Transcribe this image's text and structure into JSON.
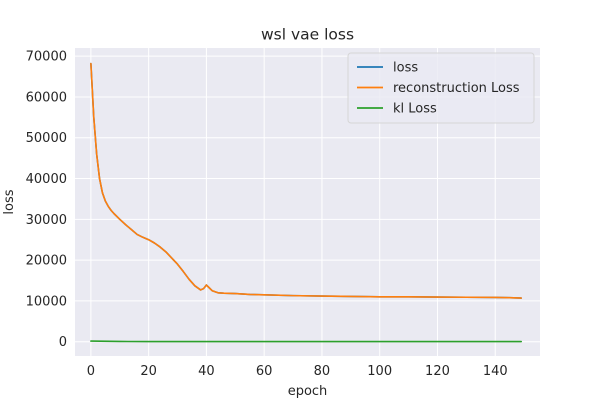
{
  "chart_data": {
    "type": "line",
    "title": "wsl vae loss",
    "xlabel": "epoch",
    "ylabel": "loss",
    "xlim": [
      -5.5,
      155.5
    ],
    "ylim": [
      -3500,
      72000
    ],
    "xticks": [
      0,
      20,
      40,
      60,
      80,
      100,
      120,
      140
    ],
    "yticks": [
      0,
      10000,
      20000,
      30000,
      40000,
      50000,
      60000,
      70000
    ],
    "xtick_labels": [
      "0",
      "20",
      "40",
      "60",
      "80",
      "100",
      "120",
      "140"
    ],
    "ytick_labels": [
      "0",
      "10000",
      "20000",
      "30000",
      "40000",
      "50000",
      "60000",
      "70000"
    ],
    "grid": true,
    "background": "#eaeaf2",
    "legend_position": "top-right",
    "series": [
      {
        "name": "loss",
        "color": "#1f77b4",
        "x": [
          0,
          1,
          2,
          3,
          4,
          5,
          6,
          7,
          8,
          10,
          12,
          14,
          16,
          18,
          20,
          22,
          24,
          26,
          28,
          30,
          32,
          34,
          36,
          38,
          39,
          40,
          41,
          42,
          44,
          46,
          50,
          55,
          60,
          70,
          80,
          90,
          100,
          110,
          120,
          130,
          140,
          145,
          149
        ],
        "values": [
          68200,
          55000,
          46000,
          40000,
          36500,
          34500,
          33200,
          32200,
          31400,
          30000,
          28700,
          27500,
          26300,
          25600,
          25000,
          24200,
          23200,
          22000,
          20500,
          19000,
          17200,
          15300,
          13700,
          12700,
          13000,
          13900,
          13200,
          12500,
          12000,
          11900,
          11800,
          11600,
          11500,
          11300,
          11200,
          11100,
          11000,
          11000,
          10950,
          10900,
          10850,
          10800,
          10700
        ]
      },
      {
        "name": "reconstruction Loss",
        "color": "#ff7f0e",
        "x": [
          0,
          1,
          2,
          3,
          4,
          5,
          6,
          7,
          8,
          10,
          12,
          14,
          16,
          18,
          20,
          22,
          24,
          26,
          28,
          30,
          32,
          34,
          36,
          38,
          39,
          40,
          41,
          42,
          44,
          46,
          50,
          55,
          60,
          70,
          80,
          90,
          100,
          110,
          120,
          130,
          140,
          145,
          149
        ],
        "values": [
          68200,
          55000,
          46000,
          40000,
          36500,
          34500,
          33200,
          32200,
          31400,
          30000,
          28700,
          27500,
          26300,
          25600,
          25000,
          24200,
          23200,
          22000,
          20500,
          19000,
          17200,
          15300,
          13700,
          12700,
          13000,
          13900,
          13200,
          12500,
          12000,
          11900,
          11800,
          11600,
          11500,
          11300,
          11200,
          11100,
          11000,
          11000,
          10950,
          10900,
          10850,
          10800,
          10700
        ]
      },
      {
        "name": "kl Loss",
        "color": "#2ca02c",
        "x": [
          0,
          10,
          20,
          30,
          40,
          50,
          60,
          70,
          80,
          90,
          100,
          110,
          120,
          130,
          140,
          149
        ],
        "values": [
          150,
          60,
          50,
          40,
          40,
          40,
          40,
          50,
          50,
          50,
          50,
          50,
          50,
          50,
          50,
          50
        ]
      }
    ]
  }
}
